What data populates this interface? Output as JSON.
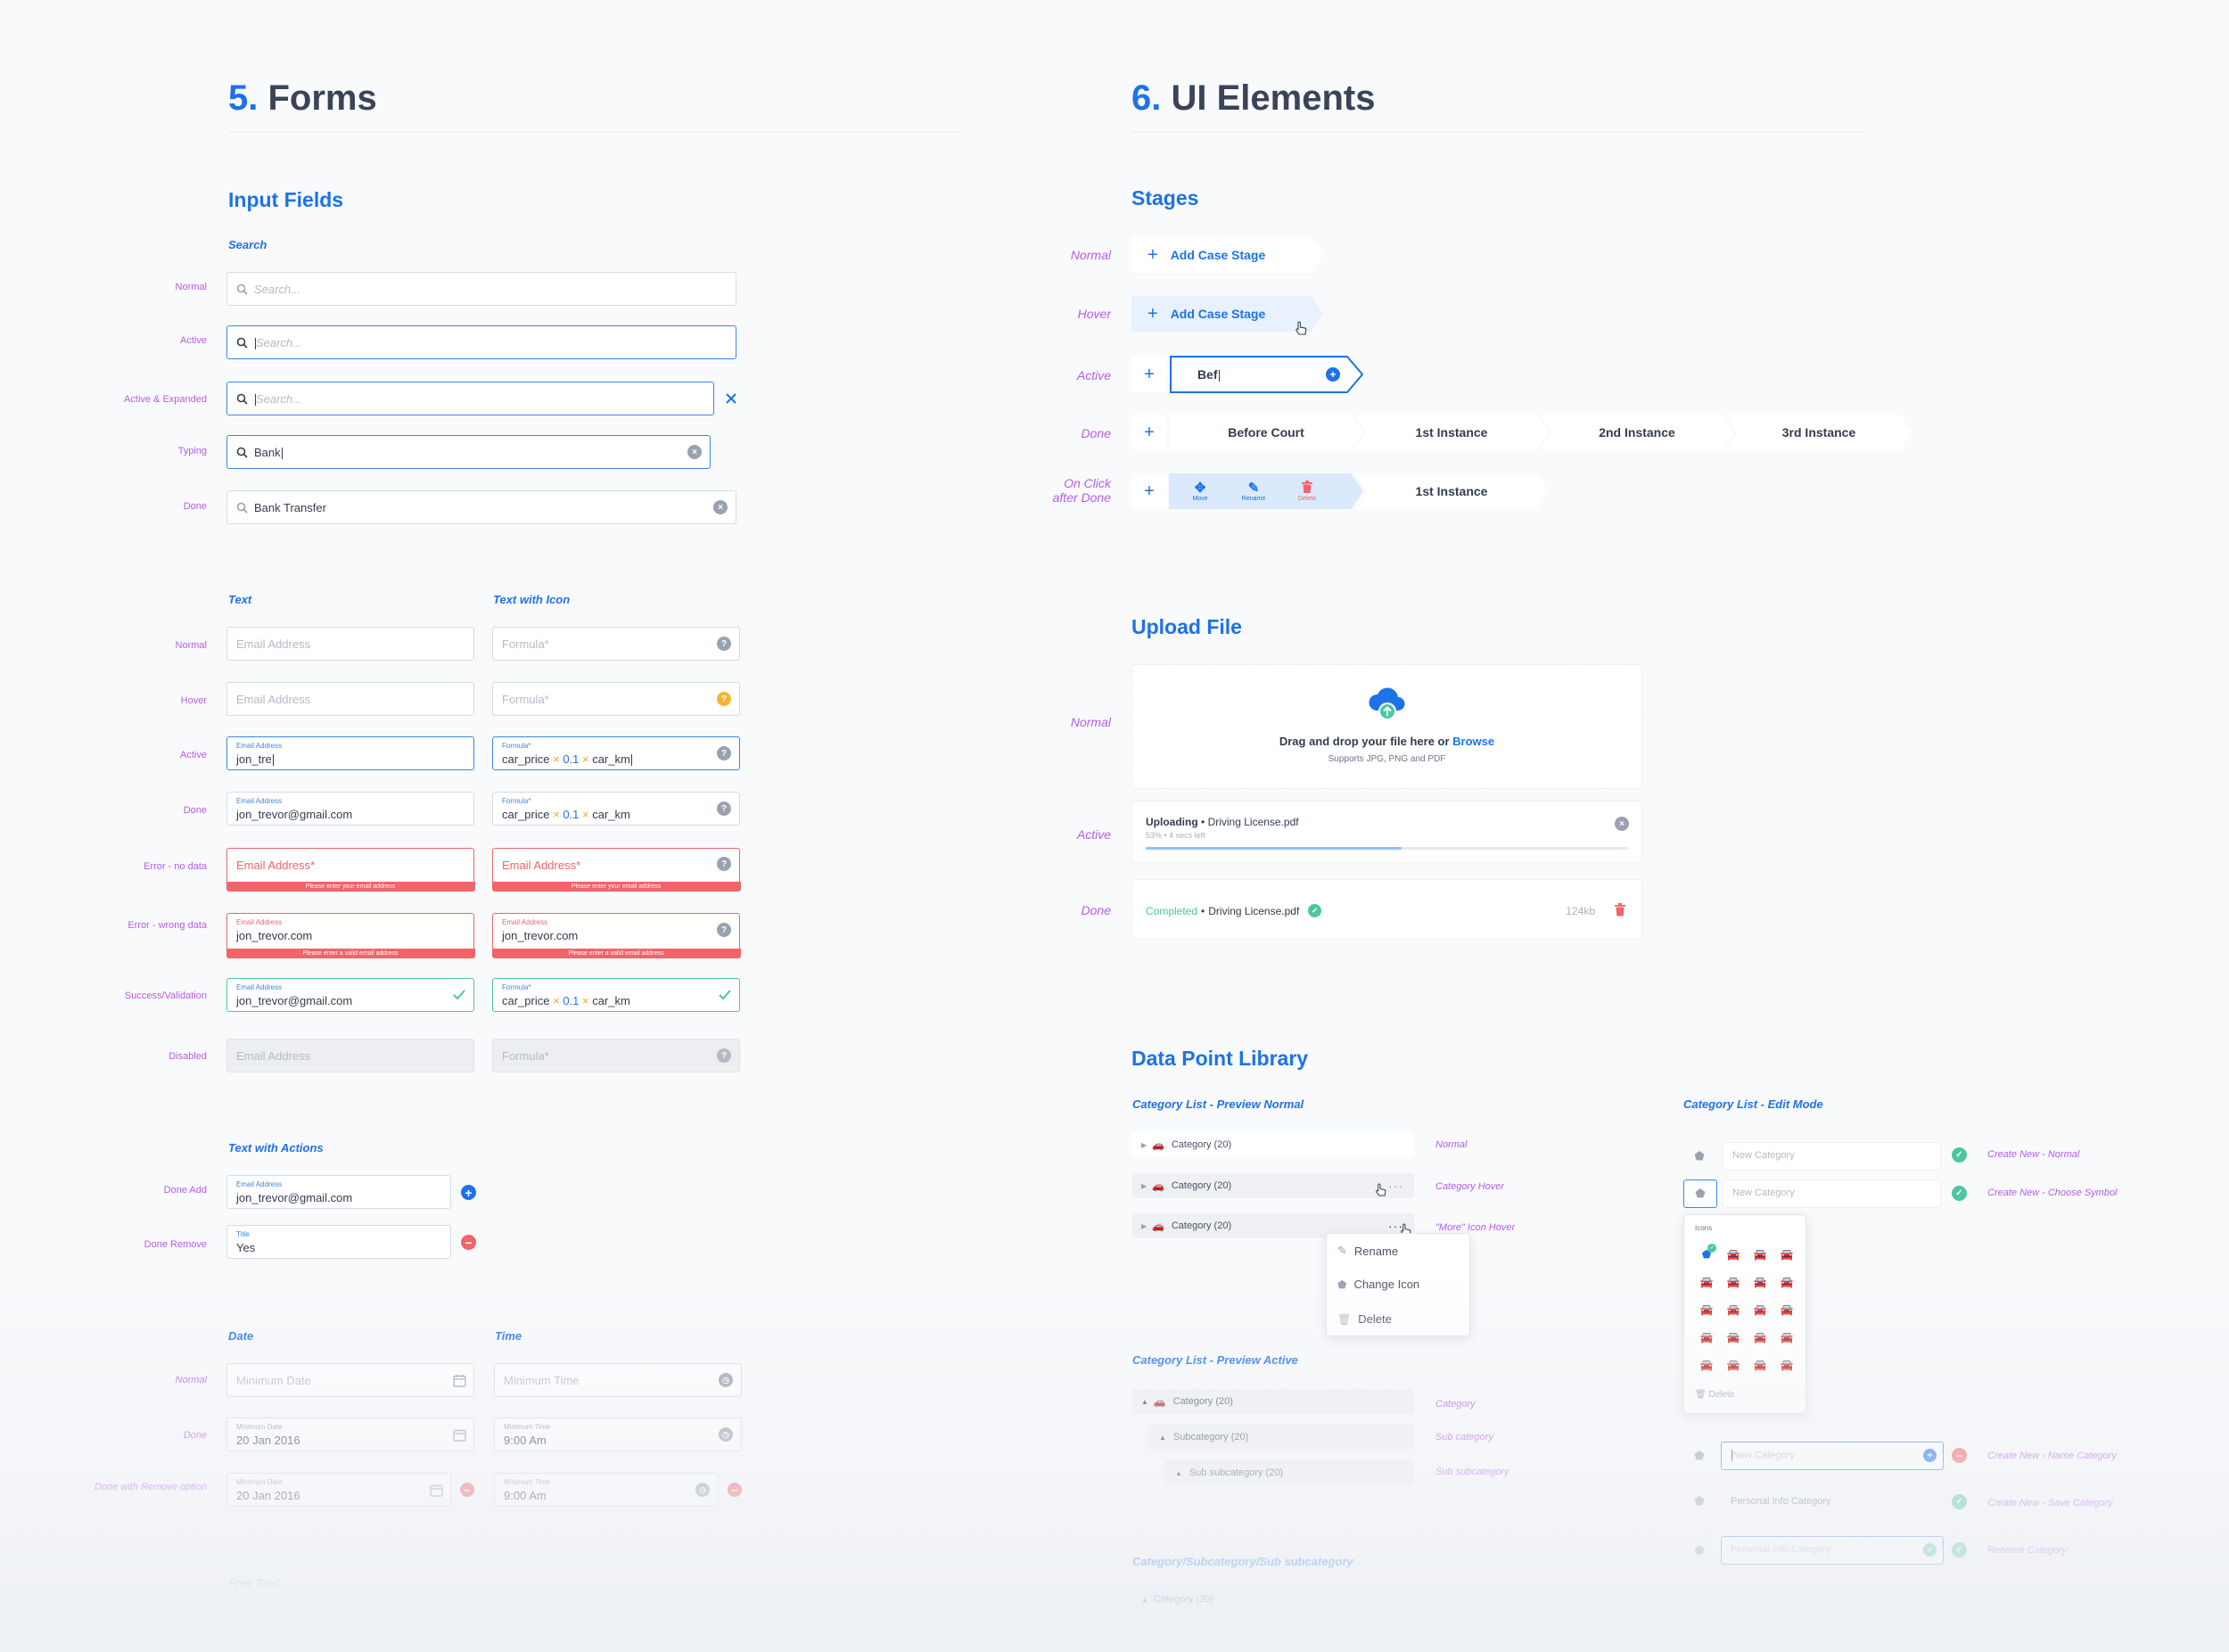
{
  "forms": {
    "number": "5.",
    "title": "Forms",
    "input_fields_title": "Input Fields",
    "search": {
      "title": "Search",
      "rows": [
        {
          "label": "Normal",
          "placeholder": "Search...",
          "value": ""
        },
        {
          "label": "Active",
          "placeholder": "Search...",
          "value": ""
        },
        {
          "label": "Active & Expanded",
          "placeholder": "Search...",
          "value": ""
        },
        {
          "label": "Typing",
          "placeholder": "",
          "value": "Bank"
        },
        {
          "label": "Done",
          "placeholder": "",
          "value": "Bank Transfer"
        }
      ]
    },
    "text": {
      "title": "Text",
      "title_icon": "Text with Icon",
      "labels": {
        "normal": "Normal",
        "hover": "Hover",
        "active": "Active",
        "done": "Done",
        "error_no": "Error - no data",
        "error_wrong": "Error - wrong data",
        "success": "Success/Validation",
        "disabled": "Disabled"
      },
      "email_placeholder": "Email Address",
      "email_required_placeholder": "Email Address*",
      "formula_placeholder": "Formula*",
      "email_label": "Email Address",
      "formula_label": "Formula*",
      "active_email_value": "jon_tre",
      "done_email_value": "jon_trevor@gmail.com",
      "wrong_email_value": "jon_trevor.com",
      "success_email_value": "jon_trevor@gmail.com",
      "formula_parts": [
        "car_price",
        "×",
        "0.1",
        "×",
        "car_km"
      ],
      "error_no_msg": "Please enter your email address",
      "error_wrong_msg": "Please enter a valid email address"
    },
    "actions": {
      "title": "Text with Actions",
      "done_add_label": "Done Add",
      "done_add_field_label": "Email Address",
      "done_add_value": "jon_trevor@gmail.com",
      "done_remove_label": "Done Remove",
      "done_remove_field_label": "Title",
      "done_remove_value": "Yes"
    },
    "date": {
      "title": "Date",
      "time_title": "Time",
      "normal_label": "Normal",
      "done_label": "Done",
      "remove_label": "Done with Remove option",
      "min_date_placeholder": "Minimum Date",
      "min_time_placeholder": "Minimum Time",
      "min_date_label": "Minimum Date",
      "min_time_label": "Minimum Time",
      "date_value": "20 Jan 2016",
      "time_value": "9:00 Am",
      "free_text_label": "Free Text"
    }
  },
  "ui": {
    "number": "6.",
    "title": "UI Elements",
    "stages": {
      "title": "Stages",
      "labels": {
        "normal": "Normal",
        "hover": "Hover",
        "active": "Active",
        "done": "Done",
        "on_click_1": "On Click",
        "on_click_2": "after Done"
      },
      "add_label": "Add Case Stage",
      "active_value": "Bef",
      "done_stages": [
        "Before Court",
        "1st Instance",
        "2nd Instance",
        "3rd Instance"
      ],
      "actions": [
        "Move",
        "Rename",
        "Delete"
      ],
      "after_stage": "1st Instance"
    },
    "upload": {
      "title": "Upload File",
      "labels": {
        "normal": "Normal",
        "active": "Active",
        "done": "Done"
      },
      "drag_text": "Drag and drop your file here or",
      "browse": "Browse",
      "supports": "Supports JPG, PNG and PDF",
      "uploading": "Uploading",
      "sep": "•",
      "file_name": "Driving License.pdf",
      "progress_text": "53% • 4 secs left",
      "progress": 0.53,
      "completed": "Completed",
      "size": "124kb"
    },
    "library": {
      "title": "Data Point Library",
      "preview_normal_title": "Category List - Preview Normal",
      "edit_mode_title": "Category List - Edit Mode",
      "preview_active_title": "Category List - Preview Active",
      "path_title": "Category/Subcategory/Sub subcategory",
      "category": "Category (20)",
      "subcategory": "Subcategory (20)",
      "subsubcategory": "Sub subcategory (20)",
      "notes": {
        "normal": "Normal",
        "hover": "Category Hover",
        "more": "\"More\" Icon Hover",
        "category": "Category",
        "sub": "Sub category",
        "subsub": "Sub subcategory",
        "create_normal": "Create New - Normal",
        "create_symbol": "Create New - Choose Symbol",
        "create_name": "Create New - Name Category",
        "create_save": "Create New - Save Category",
        "rename": "Rename Category"
      },
      "menu": [
        "Rename",
        "Change Icon",
        "Delete"
      ],
      "new_category": "New Category",
      "icons_label": "Icons",
      "delete": "Delete",
      "personal_info": "Personal Info Category"
    }
  },
  "colors": {
    "blue": "#1d72e8",
    "purple": "#b65ce6",
    "red": "#f0646a",
    "green": "#4dc7a0",
    "orange": "#f5a623"
  }
}
